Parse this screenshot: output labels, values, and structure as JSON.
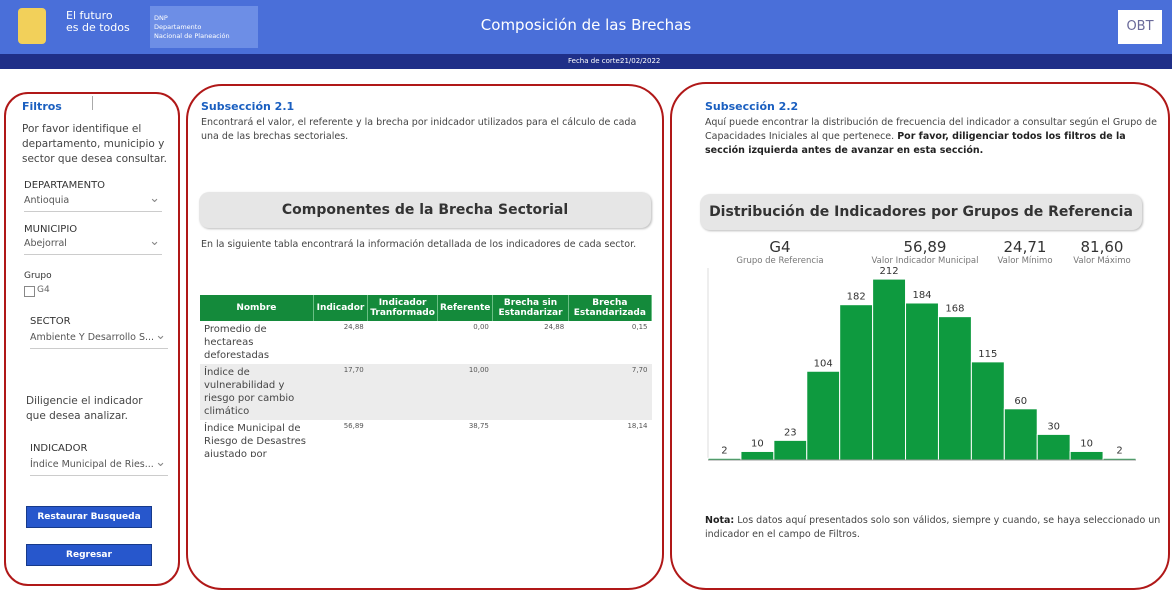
{
  "header": {
    "brand": "El futuro\nes de todos",
    "dnp": "DNP\nDepartamento\nNacional de Planeación",
    "title": "Composición de las Brechas",
    "date_label": "Fecha de corte:",
    "date": "21/02/2022",
    "logo": "OBT"
  },
  "filters": {
    "title": "Filtros",
    "intro": "Por favor identifique el departamento, municipio y sector que desea consultar.",
    "departamento": {
      "label": "DEPARTAMENTO",
      "value": "Antioquia"
    },
    "municipio": {
      "label": "MUNICIPIO",
      "value": "Abejorral"
    },
    "grupo": {
      "label": "Grupo",
      "option": "G4"
    },
    "sector": {
      "label": "SECTOR",
      "value": "Ambiente Y Desarrollo S..."
    },
    "indicador_intro": "Diligencie el indicador que desea analizar.",
    "indicador": {
      "label": "INDICADOR",
      "value": "Índice Municipal de Ries..."
    },
    "reset": "Restaurar Busqueda",
    "back": "Regresar"
  },
  "section1": {
    "title": "Subsección 2.1",
    "intro": "Encontrará el valor, el referente y la brecha por inidcador utilizados para el cálculo de cada una de las brechas sectoriales.",
    "banner": "Componentes de la Brecha Sectorial",
    "table_intro": "En la siguiente tabla encontrará la información detallada de los indicadores de cada sector.",
    "table": {
      "columns": [
        "Nombre",
        "Indicador",
        "Indicador Tranformado",
        "Referente",
        "Brecha sin Estandarizar",
        "Brecha Estandarizada"
      ],
      "rows": [
        [
          "Promedio de hectareas deforestadas",
          "24,88",
          null,
          "0,00",
          "24,88",
          "0,15"
        ],
        [
          "Índice de vulnerabilidad y riesgo por cambio climático",
          "17,70",
          null,
          "10,00",
          null,
          "7,70"
        ],
        [
          "Índice Municipal de Riesgo de Desastres ajustado por",
          "56,89",
          null,
          "38,75",
          null,
          "18,14"
        ]
      ]
    }
  },
  "section2": {
    "title": "Subsección 2.2",
    "intro": "Aquí puede encontrar la distribución de frecuencia del indicador a consultar según el Grupo de Capacidades Iniciales al que pertenece.",
    "intro_bold": "Por favor, diligenciar todos los filtros de la sección izquierda antes de avanzar en esta sección.",
    "banner": "Distribución de Indicadores por Grupos de Referencia",
    "cards": [
      {
        "value": "G4",
        "label": "Grupo de Referencia"
      },
      {
        "value": "56,89",
        "label": "Valor Indicador Municipal"
      },
      {
        "value": "24,71",
        "label": "Valor Mínimo"
      },
      {
        "value": "81,60",
        "label": "Valor Máximo"
      }
    ],
    "chart_data": {
      "type": "bar",
      "values": [
        2,
        10,
        23,
        104,
        182,
        212,
        184,
        168,
        115,
        60,
        30,
        10,
        2
      ],
      "color": "#0e9a3f",
      "ylim": [
        0,
        225
      ]
    },
    "note_bold": "Nota:",
    "note": "Los datos aquí presentados solo son válidos, siempre y cuando, se haya seleccionado un indicador en el campo de Filtros."
  }
}
